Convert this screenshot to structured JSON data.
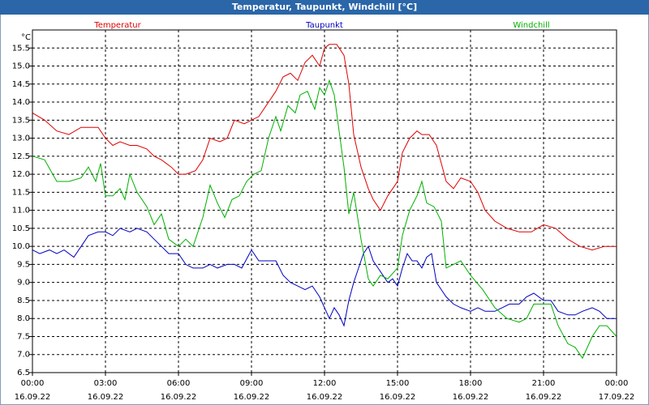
{
  "window": {
    "title": "Temperatur, Taupunkt, Windchill [°C]"
  },
  "chart_data": {
    "type": "line",
    "title": "Temperatur, Taupunkt, Windchill [°C]",
    "ylabel": "°C",
    "ylim": [
      6.5,
      16.0
    ],
    "yticks": [
      6.5,
      7.0,
      7.5,
      8.0,
      8.5,
      9.0,
      9.5,
      10.0,
      10.5,
      11.0,
      11.5,
      12.0,
      12.5,
      13.0,
      13.5,
      14.0,
      14.5,
      15.0,
      15.5
    ],
    "xlim": [
      0,
      24
    ],
    "xticks": [
      {
        "x": 0,
        "time": "00:00",
        "date": "16.09.22"
      },
      {
        "x": 3,
        "time": "03:00",
        "date": "16.09.22"
      },
      {
        "x": 6,
        "time": "06:00",
        "date": "16.09.22"
      },
      {
        "x": 9,
        "time": "09:00",
        "date": "16.09.22"
      },
      {
        "x": 12,
        "time": "12:00",
        "date": "16.09.22"
      },
      {
        "x": 15,
        "time": "15:00",
        "date": "16.09.22"
      },
      {
        "x": 18,
        "time": "18:00",
        "date": "16.09.22"
      },
      {
        "x": 21,
        "time": "21:00",
        "date": "16.09.22"
      },
      {
        "x": 24,
        "time": "00:00",
        "date": "17.09.22"
      }
    ],
    "grid": true,
    "series": [
      {
        "name": "Temperatur",
        "color": "#e00000",
        "legend_x": 3.5,
        "x": [
          0,
          0.5,
          1,
          1.5,
          2,
          2.3,
          2.7,
          3,
          3.3,
          3.6,
          4,
          4.3,
          4.7,
          5,
          5.3,
          5.7,
          6,
          6.3,
          6.7,
          7,
          7.3,
          7.7,
          8,
          8.3,
          8.7,
          9,
          9.3,
          9.7,
          10,
          10.3,
          10.6,
          10.9,
          11.2,
          11.5,
          11.8,
          12,
          12.2,
          12.5,
          12.8,
          13,
          13.2,
          13.5,
          13.8,
          14,
          14.3,
          14.6,
          15,
          15.2,
          15.5,
          15.8,
          16,
          16.3,
          16.6,
          17,
          17.3,
          17.6,
          18,
          18.3,
          18.6,
          19,
          19.5,
          20,
          20.5,
          21,
          21.5,
          22,
          22.5,
          23,
          23.5,
          24
        ],
        "values": [
          13.7,
          13.5,
          13.2,
          13.1,
          13.3,
          13.3,
          13.3,
          13.0,
          12.8,
          12.9,
          12.8,
          12.8,
          12.7,
          12.5,
          12.4,
          12.2,
          12.0,
          12.0,
          12.1,
          12.4,
          13.0,
          12.9,
          13.0,
          13.5,
          13.4,
          13.5,
          13.6,
          14.0,
          14.3,
          14.7,
          14.8,
          14.6,
          15.1,
          15.3,
          15.0,
          15.5,
          15.6,
          15.6,
          15.3,
          14.5,
          13.1,
          12.2,
          11.6,
          11.3,
          11.0,
          11.4,
          11.8,
          12.6,
          13.0,
          13.2,
          13.1,
          13.1,
          12.8,
          11.8,
          11.6,
          11.9,
          11.8,
          11.5,
          11.0,
          10.7,
          10.5,
          10.4,
          10.4,
          10.6,
          10.5,
          10.2,
          10.0,
          9.9,
          10.0,
          10.0
        ]
      },
      {
        "name": "Taupunkt",
        "color": "#0000c0",
        "legend_x": 12.0,
        "x": [
          0,
          0.3,
          0.7,
          1,
          1.3,
          1.7,
          2,
          2.3,
          2.7,
          3,
          3.3,
          3.6,
          4,
          4.3,
          4.7,
          5,
          5.3,
          5.6,
          6,
          6.3,
          6.6,
          7,
          7.3,
          7.6,
          8,
          8.3,
          8.6,
          9,
          9.3,
          9.6,
          10,
          10.3,
          10.6,
          10.9,
          11.2,
          11.5,
          11.8,
          12,
          12.2,
          12.4,
          12.6,
          12.8,
          13,
          13.2,
          13.4,
          13.6,
          13.8,
          14,
          14.2,
          14.4,
          14.6,
          14.8,
          15,
          15.2,
          15.4,
          15.6,
          15.8,
          16,
          16.2,
          16.4,
          16.6,
          16.8,
          17,
          17.3,
          17.6,
          18,
          18.3,
          18.6,
          19,
          19.3,
          19.6,
          20,
          20.3,
          20.6,
          21,
          21.3,
          21.6,
          22,
          22.3,
          22.6,
          23,
          23.3,
          23.6,
          24
        ],
        "values": [
          9.9,
          9.8,
          9.9,
          9.8,
          9.9,
          9.7,
          10.0,
          10.3,
          10.4,
          10.4,
          10.3,
          10.5,
          10.4,
          10.5,
          10.4,
          10.2,
          10.0,
          9.8,
          9.8,
          9.5,
          9.4,
          9.4,
          9.5,
          9.4,
          9.5,
          9.5,
          9.4,
          9.9,
          9.6,
          9.6,
          9.6,
          9.2,
          9.0,
          8.9,
          8.8,
          8.9,
          8.6,
          8.3,
          8.0,
          8.3,
          8.1,
          7.8,
          8.5,
          9.0,
          9.4,
          9.8,
          10.0,
          9.6,
          9.4,
          9.2,
          9.0,
          9.1,
          8.9,
          9.4,
          9.8,
          9.6,
          9.6,
          9.4,
          9.7,
          9.8,
          9.0,
          8.8,
          8.6,
          8.4,
          8.3,
          8.2,
          8.3,
          8.2,
          8.2,
          8.3,
          8.4,
          8.4,
          8.6,
          8.7,
          8.5,
          8.5,
          8.2,
          8.1,
          8.1,
          8.2,
          8.3,
          8.2,
          8.0,
          8.0
        ]
      },
      {
        "name": "Windchill",
        "color": "#00b000",
        "legend_x": 20.5,
        "x": [
          0,
          0.5,
          1,
          1.5,
          2,
          2.3,
          2.6,
          2.8,
          3,
          3.3,
          3.6,
          3.8,
          4,
          4.3,
          4.7,
          5,
          5.3,
          5.6,
          6,
          6.3,
          6.6,
          7,
          7.3,
          7.6,
          7.9,
          8.2,
          8.5,
          8.8,
          9.1,
          9.4,
          9.7,
          10,
          10.2,
          10.5,
          10.8,
          11,
          11.3,
          11.6,
          11.8,
          12,
          12.2,
          12.4,
          12.6,
          12.8,
          13,
          13.2,
          13.5,
          13.8,
          14,
          14.3,
          14.6,
          15,
          15.2,
          15.5,
          15.8,
          16,
          16.2,
          16.5,
          16.8,
          17,
          17.3,
          17.6,
          18,
          18.5,
          19,
          19.5,
          20,
          20.3,
          20.6,
          21,
          21.3,
          21.6,
          22,
          22.3,
          22.6,
          23,
          23.3,
          23.6,
          24
        ],
        "values": [
          12.5,
          12.4,
          11.8,
          11.8,
          11.9,
          12.2,
          11.8,
          12.3,
          11.4,
          11.4,
          11.6,
          11.3,
          12.0,
          11.5,
          11.1,
          10.6,
          10.9,
          10.2,
          10.0,
          10.2,
          10.0,
          10.8,
          11.7,
          11.2,
          10.8,
          11.3,
          11.4,
          11.8,
          12.0,
          12.1,
          13.0,
          13.6,
          13.2,
          13.9,
          13.7,
          14.2,
          14.3,
          13.8,
          14.4,
          14.2,
          14.6,
          14.2,
          13.2,
          12.2,
          10.9,
          11.5,
          10.2,
          9.1,
          8.9,
          9.2,
          9.1,
          9.4,
          10.3,
          11.0,
          11.4,
          11.8,
          11.2,
          11.1,
          10.7,
          9.4,
          9.5,
          9.6,
          9.2,
          8.8,
          8.3,
          8.0,
          7.9,
          8.0,
          8.4,
          8.4,
          8.4,
          7.8,
          7.3,
          7.2,
          6.9,
          7.5,
          7.8,
          7.8,
          7.5
        ]
      }
    ]
  }
}
